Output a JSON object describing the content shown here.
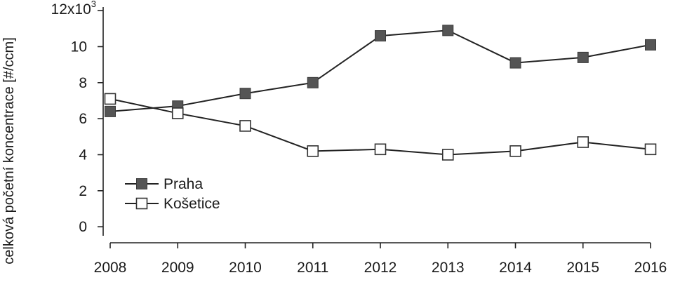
{
  "chart_data": {
    "type": "line",
    "ylabel": "celková početní koncentrace [#/ccm]",
    "y_multiplier_label": "12x10",
    "y_multiplier_exponent": "3",
    "x": [
      2008,
      2009,
      2010,
      2011,
      2012,
      2013,
      2014,
      2015,
      2016
    ],
    "x_tick_labels": [
      "2008",
      "2009",
      "2010",
      "2011",
      "2012",
      "2013",
      "2014",
      "2015",
      "2016"
    ],
    "y_tick_labels": [
      "0",
      "2",
      "4",
      "6",
      "8",
      "10"
    ],
    "y_ticks": [
      0,
      2,
      4,
      6,
      8,
      10
    ],
    "xlim": [
      2008,
      2016
    ],
    "ylim": [
      -0.5,
      12.2
    ],
    "grid": false,
    "legend_position": "lower-left",
    "series": [
      {
        "name": "Praha",
        "marker": "filled-square",
        "color": "#555555",
        "values": [
          6.4,
          6.7,
          7.4,
          8.0,
          10.6,
          10.9,
          9.1,
          9.4,
          10.1
        ]
      },
      {
        "name": "Košetice",
        "marker": "open-square",
        "color": "#333333",
        "values": [
          7.1,
          6.3,
          5.6,
          4.2,
          4.3,
          4.0,
          4.2,
          4.7,
          4.3
        ]
      }
    ]
  }
}
